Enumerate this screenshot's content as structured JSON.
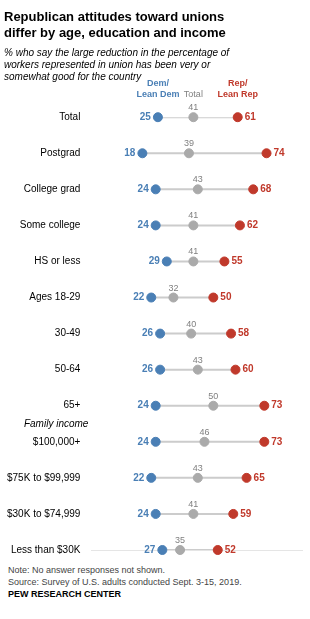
{
  "chart_data": {
    "type": "dot",
    "title": "Republican attitudes toward unions\ndiffer by age, education and income",
    "subtitle": "% who say the large reduction in the percentage of\nworkers represented in union has been very or\nsomewhat good for the country",
    "categories": [
      "Total",
      "Postgrad",
      "College grad",
      "Some college",
      "HS or less",
      "Ages 18-29",
      "30-49",
      "50-64",
      "65+",
      "$100,000+",
      "$75K to $99,999",
      "$30K to $74,999",
      "Less than $30K"
    ],
    "series": [
      {
        "name": "Dem/\nLean Dem",
        "color": "#4a7fb5",
        "values": [
          25,
          18,
          24,
          24,
          29,
          22,
          26,
          26,
          24,
          24,
          22,
          24,
          27
        ]
      },
      {
        "name": "Total",
        "color": "#aaaaaa",
        "values": [
          41,
          39,
          43,
          41,
          41,
          32,
          40,
          43,
          50,
          46,
          43,
          41,
          35
        ]
      },
      {
        "name": "Rep/\nLean Rep",
        "color": "#c0392b",
        "values": [
          61,
          74,
          68,
          62,
          55,
          50,
          58,
          60,
          73,
          73,
          65,
          59,
          52
        ]
      }
    ],
    "xlim": [
      -5,
      90
    ],
    "orientation": "horizontal",
    "data_labels": true,
    "tick_labels": "y",
    "grid": false,
    "annotations": [
      {
        "text": "Family income",
        "category": "$100,000+"
      }
    ],
    "footer": [
      "Note: No answer responses not shown.",
      "Source: Survey of U.S. adults conducted Sept. 3-15, 2019.",
      "PEW RESEARCH CENTER"
    ]
  }
}
